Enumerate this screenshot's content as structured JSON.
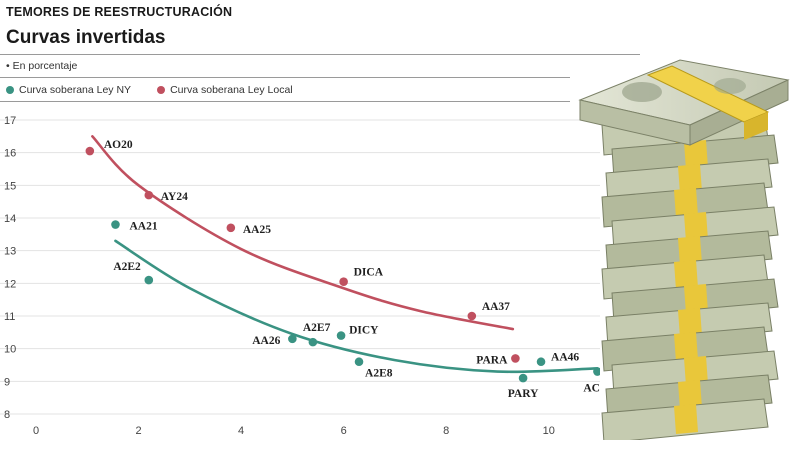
{
  "header": {
    "kicker": "TEMORES DE REESTRUCTURACIÓN",
    "title": "Curvas invertidas",
    "subtitle": "• En porcentaje"
  },
  "colors": {
    "ny": "#3a9383",
    "local": "#c0505f",
    "grid": "#e3e3e3",
    "text": "#222222"
  },
  "chart_data": {
    "type": "scatter",
    "title": "Curvas invertidas",
    "xlabel": "",
    "ylabel": "",
    "xlim": [
      0,
      11
    ],
    "ylim": [
      8,
      17
    ],
    "x_ticks": [
      0,
      2,
      4,
      6,
      8,
      10
    ],
    "y_ticks": [
      8,
      9,
      10,
      11,
      12,
      13,
      14,
      15,
      16,
      17
    ],
    "grid": true,
    "legend": "top-left",
    "series": [
      {
        "name": "Curva soberana Ley NY",
        "color": "#3a9383",
        "points": [
          {
            "label": "AA21",
            "x": 1.55,
            "y": 13.8
          },
          {
            "label": "A2E2",
            "x": 2.2,
            "y": 12.1
          },
          {
            "label": "AA26",
            "x": 5.0,
            "y": 10.3
          },
          {
            "label": "A2E7",
            "x": 5.4,
            "y": 10.2
          },
          {
            "label": "DICY",
            "x": 5.95,
            "y": 10.4
          },
          {
            "label": "A2E8",
            "x": 6.3,
            "y": 9.6
          },
          {
            "label": "PARY",
            "x": 9.5,
            "y": 9.1
          },
          {
            "label": "AA46",
            "x": 9.85,
            "y": 9.6
          },
          {
            "label": "AC17",
            "x": 10.95,
            "y": 9.3
          }
        ],
        "trend": [
          [
            1.55,
            13.3
          ],
          [
            3,
            11.85
          ],
          [
            5,
            10.45
          ],
          [
            7,
            9.65
          ],
          [
            9,
            9.3
          ],
          [
            10.95,
            9.4
          ]
        ]
      },
      {
        "name": "Curva soberana Ley Local",
        "color": "#c0505f",
        "points": [
          {
            "label": "AO20",
            "x": 1.05,
            "y": 16.05
          },
          {
            "label": "AY24",
            "x": 2.2,
            "y": 14.7
          },
          {
            "label": "AA25",
            "x": 3.8,
            "y": 13.7
          },
          {
            "label": "DICA",
            "x": 6.0,
            "y": 12.05
          },
          {
            "label": "AA37",
            "x": 8.5,
            "y": 11.0
          },
          {
            "label": "PARA",
            "x": 9.35,
            "y": 9.7
          }
        ],
        "trend": [
          [
            1.1,
            16.5
          ],
          [
            2,
            15.0
          ],
          [
            4,
            13.05
          ],
          [
            6,
            11.85
          ],
          [
            7.5,
            11.15
          ],
          [
            9.3,
            10.6
          ]
        ]
      }
    ]
  }
}
